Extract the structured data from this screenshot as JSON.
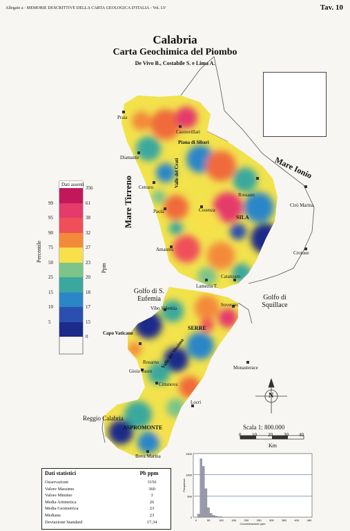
{
  "header": {
    "note": "Allegato a : MEMORIE DESCRITTIVE DELLA CARTA GEOLOGICA D'ITALIA - Vol. LV",
    "plate": "Tav. 10"
  },
  "title": "Calabria",
  "subtitle": "Carta Geochimica del Piombo",
  "authors": "De Vivo B., Costabile S. e Lima A.",
  "places": {
    "praia": "Praia",
    "castrovillari": "Castrovillari",
    "piana_sibari": "Piana di Sibari",
    "diamante": "Diamante",
    "valle_crati": "Valle del Crati",
    "cetraro": "Cetraro",
    "rossano": "Rossano",
    "paola": "Paola",
    "cosenza": "Cosenza",
    "sila": "SILA",
    "ciro_marina": "Cirò Marina",
    "amantea": "Amantea",
    "crotone": "Crotone",
    "catanzaro": "Catanzaro",
    "lamezia": "Lamezia T.",
    "vibo": "Vibo Valentia",
    "soverato": "Soverato",
    "capo_vaticano": "Capo Vaticano",
    "serre": "SERRE",
    "valle_mesima": "Valle del Mesima",
    "rosarno": "Rosarno",
    "gioia_tauro": "Gioia Tauro",
    "monasterace": "Monasterace",
    "cittanova": "Cittanova",
    "locri": "Locri",
    "reggio": "Reggio Calabria",
    "aspromonte": "ASPROMONTE",
    "bova_marina": "Bova Marina"
  },
  "seas": {
    "tirreno": "Mare Tirreno",
    "ionio": "Mare Ionio",
    "golfo_eufemia": "Golfo di S. Eufemia",
    "golfo_squillace": "Golfo di Squillace"
  },
  "north_label": "N",
  "scale": {
    "label": "Scala 1: 800.000",
    "ticks": [
      "0",
      "10",
      "20",
      "30",
      "40"
    ],
    "unit": "Km"
  },
  "legend": {
    "absent_label": "Dati assenti",
    "percentile_label": "Percentile",
    "ppm_label": "Ppm",
    "classes": [
      {
        "percentile": "",
        "ppm": "356",
        "color": "#c2185b"
      },
      {
        "percentile": "99",
        "ppm": "61",
        "color": "#e53a6a"
      },
      {
        "percentile": "95",
        "ppm": "38",
        "color": "#ef4f5a"
      },
      {
        "percentile": "90",
        "ppm": "32",
        "color": "#f38a3a"
      },
      {
        "percentile": "75",
        "ppm": "27",
        "color": "#f7e04a"
      },
      {
        "percentile": "50",
        "ppm": "23",
        "color": "#7cc48a"
      },
      {
        "percentile": "25",
        "ppm": "20",
        "color": "#3aa89e"
      },
      {
        "percentile": "15",
        "ppm": "18",
        "color": "#2b86c8"
      },
      {
        "percentile": "10",
        "ppm": "17",
        "color": "#2b4fb0"
      },
      {
        "percentile": "5",
        "ppm": "15",
        "color": "#1c2a8a"
      },
      {
        "percentile": "",
        "ppm": "0",
        "color": "#1c2a8a"
      }
    ]
  },
  "stats": {
    "header": "Dati statistici",
    "column": "Pb ppm",
    "rows": [
      {
        "label": "Osservazioni",
        "value": "3156"
      },
      {
        "label": "Valore Massimo",
        "value": "360"
      },
      {
        "label": "Valore Minimo",
        "value": "3"
      },
      {
        "label": "Media Aritmetica",
        "value": "26"
      },
      {
        "label": "Media Geometrica",
        "value": "23"
      },
      {
        "label": "Mediana",
        "value": "23"
      },
      {
        "label": "Deviazione Standard",
        "value": "17,34"
      }
    ]
  },
  "histogram": {
    "ylabel": "Frequenza",
    "xlabel": "Concentrazione ppm",
    "yticks": [
      "1500",
      "1000",
      "500",
      "0"
    ],
    "xticks": [
      "0",
      "50",
      "100",
      "150",
      "200",
      "250",
      "300",
      "350",
      "400",
      "450"
    ]
  }
}
